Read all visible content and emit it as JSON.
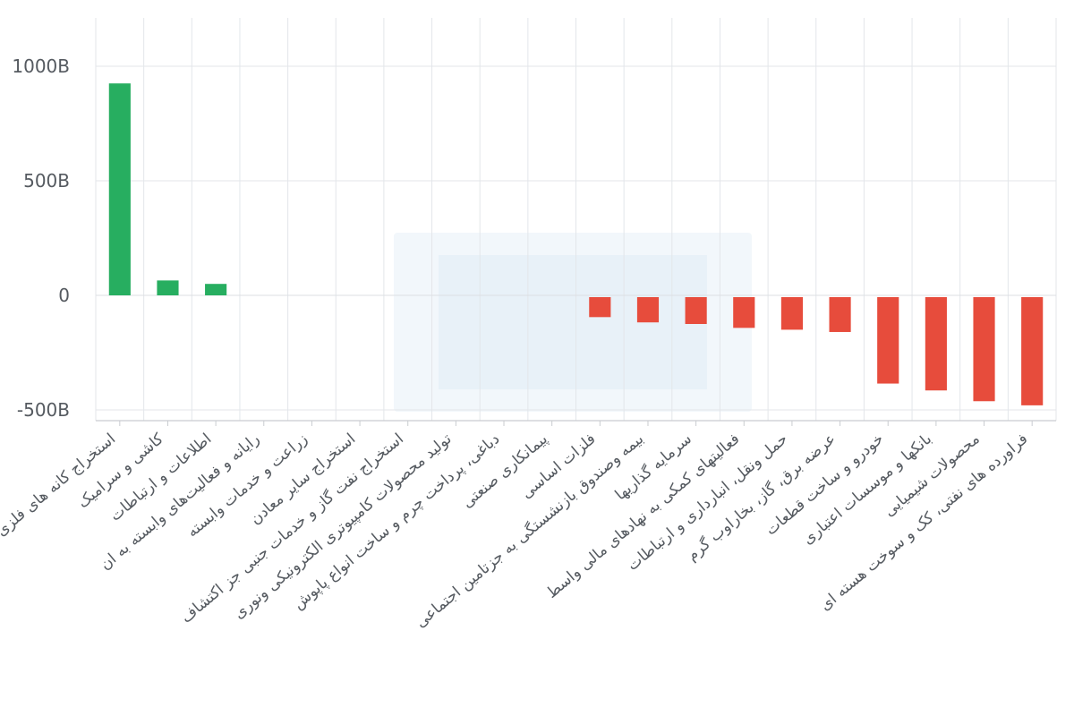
{
  "chart_data": {
    "type": "bar",
    "title": "",
    "xlabel": "",
    "ylabel": "",
    "ylim": [
      -500,
      1200
    ],
    "yticks": [
      -500,
      0,
      500,
      1000
    ],
    "ytick_labels": [
      "-500B",
      "0",
      "500B",
      "1000B"
    ],
    "grid": true,
    "legend": "none",
    "positive_color": "#27ae60",
    "negative_color": "#e74c3c",
    "categories": [
      "استخراج کانه های فلزی",
      "کاشی و سرامیک",
      "اطلاعات و ارتباطات",
      "رایانه و فعالیت‌های وابسته به ان",
      "زراعت و خدمات وابسته",
      "استخراج سایر معادن",
      "استخراج نفت گاز و خدمات جنبی جز اکتشاف",
      "تولید محصولات کامپیوتری الکترونیکی ونوری",
      "دباغی، پرداخت چرم و ساخت انواع پاپوش",
      "پیمانکاری صنعتی",
      "فلزات اساسی",
      "بیمه وصندوق بازنشستگی به جزتامین اجتماعی",
      "سرمایه گذاریها",
      "فعالیتهای کمکی به نهادهای مالی واسط",
      "حمل ونقل، انبارداری و ارتباطات",
      "عرضه برق، گاز، بخاراوب گرم",
      "خودرو و ساخت قطعات",
      "بانکها و موسسات اعتباری",
      "محصولات شیمیایی",
      "فراورده های نفتی، کک و سوخت هسته ای"
    ],
    "values": [
      925,
      65,
      50,
      0,
      0,
      0,
      0,
      0,
      0,
      0,
      -95,
      -118,
      -125,
      -142,
      -150,
      -160,
      -385,
      -415,
      -462,
      -480
    ]
  }
}
